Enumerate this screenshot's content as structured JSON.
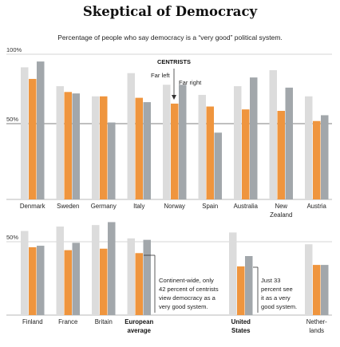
{
  "title": "Skeptical of Democracy",
  "subtitle": "Percentage of people who say democracy is a “very good” political system.",
  "colors": {
    "left": "#dcdcdc",
    "centrist": "#ef953e",
    "right": "#a2a7ab",
    "gridline": "#c9c9c9",
    "midline": "#555555",
    "baseline": "#777777",
    "annotation_line": "#333333",
    "text": "#222222"
  },
  "chart_data": [
    {
      "type": "bar",
      "panel": "top",
      "y_tick_labels": [
        "100%",
        "50%"
      ],
      "ylim": [
        0,
        100
      ],
      "grid": true,
      "series_order": [
        "Far left",
        "Centrists",
        "Far right"
      ],
      "categories": [
        {
          "label_lines": [
            "Denmark"
          ],
          "values": [
            91,
            83,
            95
          ]
        },
        {
          "label_lines": [
            "Sweden"
          ],
          "values": [
            78,
            74,
            73
          ]
        },
        {
          "label_lines": [
            "Germany"
          ],
          "values": [
            71,
            71,
            53
          ]
        },
        {
          "label_lines": [
            "Italy"
          ],
          "values": [
            87,
            70,
            67
          ]
        },
        {
          "label_lines": [
            "Norway"
          ],
          "values": [
            79,
            66,
            79
          ]
        },
        {
          "label_lines": [
            "Spain"
          ],
          "values": [
            72,
            64,
            46
          ]
        },
        {
          "label_lines": [
            "Australia"
          ],
          "values": [
            78,
            62,
            84
          ]
        },
        {
          "label_lines": [
            "New",
            "Zealand"
          ],
          "values": [
            89,
            61,
            77
          ]
        },
        {
          "label_lines": [
            "Austria"
          ],
          "values": [
            71,
            54,
            58
          ]
        }
      ]
    },
    {
      "type": "bar",
      "panel": "bottom",
      "y_tick_labels": [
        "50%"
      ],
      "ylim": [
        0,
        100
      ],
      "grid": true,
      "series_order": [
        "Far left",
        "Centrists",
        "Far right"
      ],
      "categories": [
        {
          "label_lines": [
            "Finland"
          ],
          "values": [
            57,
            46,
            47
          ],
          "bold": false
        },
        {
          "label_lines": [
            "France"
          ],
          "values": [
            60,
            44,
            49
          ],
          "bold": false
        },
        {
          "label_lines": [
            "Britain"
          ],
          "values": [
            61,
            45,
            63
          ],
          "bold": false
        },
        {
          "label_lines": [
            "European",
            "average"
          ],
          "values": [
            52,
            42,
            51
          ],
          "bold": true
        },
        {
          "label_lines": [
            "United",
            "States"
          ],
          "values": [
            56,
            33,
            40
          ],
          "bold": true
        },
        {
          "label_lines": [
            "Nether-",
            "lands"
          ],
          "values": [
            48,
            34,
            34
          ],
          "bold": false
        }
      ]
    }
  ],
  "annotations": {
    "legend_title": "CENTRISTS",
    "legend_left": "Far left",
    "legend_right": "Far right",
    "europe_note": [
      "Continent-wide, only",
      "42 percent of centrists",
      "view democracy as a",
      "very good system."
    ],
    "us_note": [
      "Just 33",
      "percent see",
      "it as a very",
      "good system."
    ]
  }
}
